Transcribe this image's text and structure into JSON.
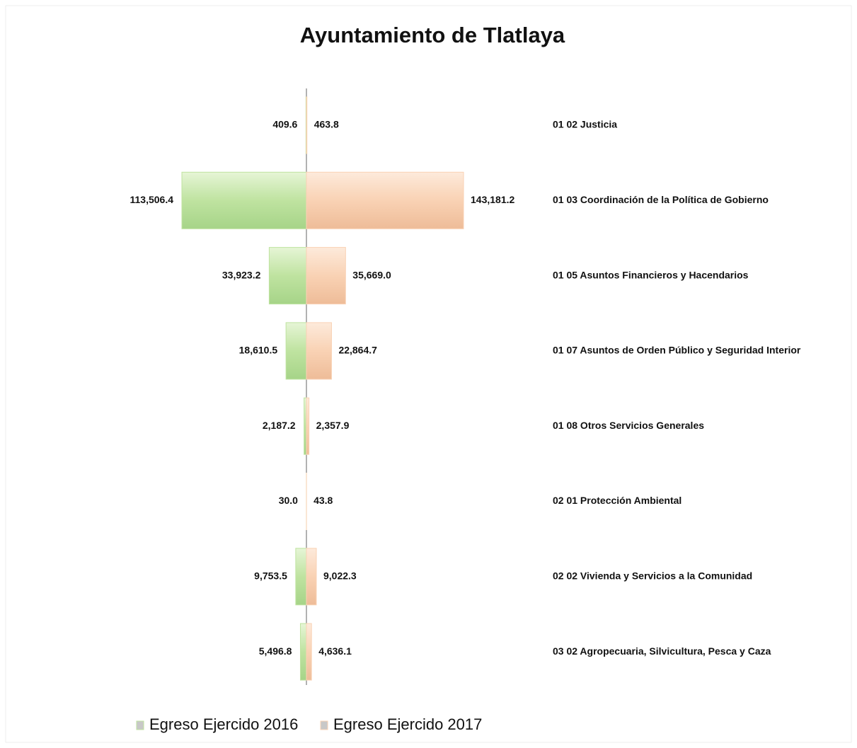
{
  "chart_data": {
    "type": "butterfly",
    "title": "Ayuntamiento de Tlatlaya",
    "categories": [
      "01 02 Justicia",
      "01 03 Coordinación de la Política de Gobierno",
      "01 05 Asuntos Financieros y Hacendarios",
      "01 07 Asuntos de Orden Público y Seguridad Interior",
      "01 08 Otros Servicios Generales",
      "02 01 Protección Ambiental",
      "02 02 Vivienda y Servicios a la Comunidad",
      "03 02 Agropecuaria, Silvicultura, Pesca y Caza"
    ],
    "series": [
      {
        "name": "Egreso Ejercido 2016",
        "color": "#bfe3a0",
        "values": [
          409.6,
          113506.4,
          33923.2,
          18610.5,
          2187.2,
          30.0,
          9753.5,
          5496.8
        ],
        "value_labels": [
          "409.6",
          "113,506.4",
          "33,923.2",
          "18,610.5",
          "2,187.2",
          "30.0",
          "9,753.5",
          "5,496.8"
        ]
      },
      {
        "name": "Egreso Ejercido 2017",
        "color": "#f9d2b4",
        "values": [
          463.8,
          143181.2,
          35669.0,
          22864.7,
          2357.9,
          43.8,
          9022.3,
          4636.1
        ],
        "value_labels": [
          "463.8",
          "143,181.2",
          "35,669.0",
          "22,864.7",
          "2,357.9",
          "43.8",
          "9,022.3",
          "4,636.1"
        ]
      }
    ],
    "legend": "bottom-left"
  }
}
